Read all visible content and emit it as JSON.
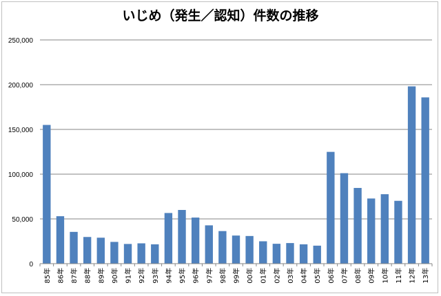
{
  "chart_data": {
    "type": "bar",
    "title": "いじめ（発生／認知）件数の推移",
    "xlabel": "",
    "ylabel": "",
    "ylim": [
      0,
      250000
    ],
    "yticks": [
      0,
      50000,
      100000,
      150000,
      200000,
      250000
    ],
    "ytick_labels": [
      "0",
      "50,000",
      "100,000",
      "150,000",
      "200,000",
      "250,000"
    ],
    "grid": true,
    "legend": "none",
    "bar_color": "#4f81bd",
    "categories": [
      "85年",
      "86年",
      "87年",
      "88年",
      "89年",
      "90年",
      "91年",
      "92年",
      "93年",
      "94年",
      "95年",
      "96年",
      "97年",
      "98年",
      "99年",
      "00年",
      "01年",
      "02年",
      "03年",
      "04年",
      "05年",
      "06年",
      "07年",
      "08年",
      "09年",
      "10年",
      "11年",
      "12年",
      "13年"
    ],
    "values": [
      155000,
      53000,
      35500,
      29800,
      29000,
      24300,
      22000,
      22700,
      21600,
      56600,
      60000,
      51500,
      42800,
      36400,
      31400,
      30900,
      25000,
      22200,
      23000,
      21600,
      20100,
      124900,
      101100,
      84600,
      72800,
      77600,
      70200,
      198100,
      185800
    ]
  }
}
